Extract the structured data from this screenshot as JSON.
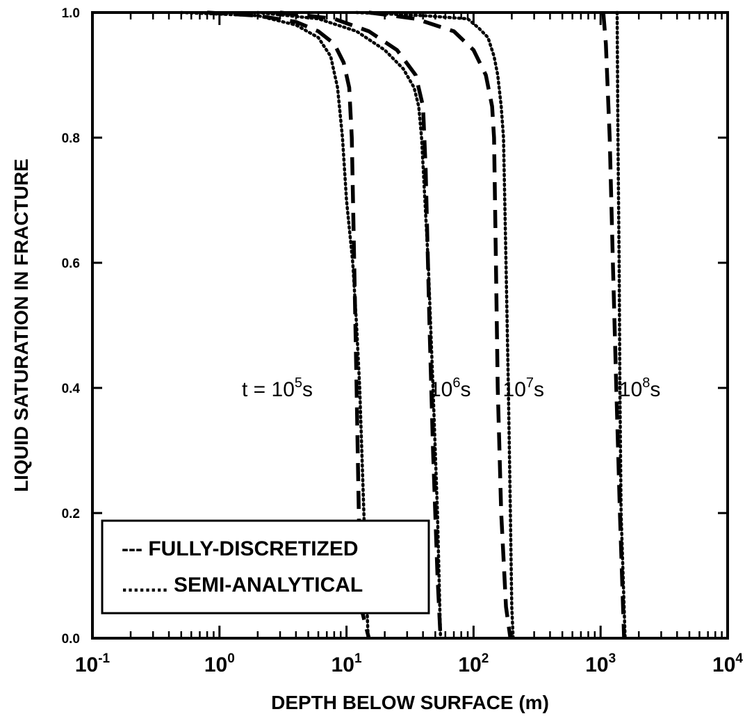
{
  "chart_data": {
    "type": "line",
    "title": "",
    "xlabel": "DEPTH BELOW SURFACE (m)",
    "ylabel": "LIQUID SATURATION IN FRACTURE",
    "x_scale": "log",
    "xlim": [
      0.1,
      10000
    ],
    "ylim": [
      0.0,
      1.0
    ],
    "x_tick_labels": [
      {
        "base": "10",
        "exp": "-1",
        "value": 0.1
      },
      {
        "base": "10",
        "exp": "0",
        "value": 1
      },
      {
        "base": "10",
        "exp": "1",
        "value": 10
      },
      {
        "base": "10",
        "exp": "2",
        "value": 100
      },
      {
        "base": "10",
        "exp": "3",
        "value": 1000
      },
      {
        "base": "10",
        "exp": "4",
        "value": 10000
      }
    ],
    "y_tick_labels": [
      "0.0",
      "0.2",
      "0.4",
      "0.6",
      "0.8",
      "1.0"
    ],
    "y_tick_values": [
      0.0,
      0.2,
      0.4,
      0.6,
      0.8,
      1.0
    ],
    "grid": false,
    "legend": {
      "placement": "bottom-left",
      "entries": [
        {
          "marker": "---",
          "label": "FULLY-DISCRETIZED",
          "style": "dashed"
        },
        {
          "marker": "........",
          "label": "SEMI-ANALYTICAL",
          "style": "dotted"
        }
      ]
    },
    "annotations": [
      {
        "prefix": "t = 10",
        "exp": "5",
        "suffix": "s",
        "x": 1.5,
        "y": 0.4
      },
      {
        "prefix": "10",
        "exp": "6",
        "suffix": "s",
        "x": 45,
        "y": 0.4
      },
      {
        "prefix": "10",
        "exp": "7",
        "suffix": "s",
        "x": 170,
        "y": 0.4
      },
      {
        "prefix": "10",
        "exp": "8",
        "suffix": "s",
        "x": 1400,
        "y": 0.4
      }
    ],
    "series": [
      {
        "time": "1e5 s",
        "method": "FULLY-DISCRETIZED",
        "style": "dashed",
        "points": [
          [
            0.8,
            1.0
          ],
          [
            2,
            0.995
          ],
          [
            4,
            0.985
          ],
          [
            6,
            0.97
          ],
          [
            8,
            0.95
          ],
          [
            9.5,
            0.92
          ],
          [
            10.5,
            0.88
          ],
          [
            11,
            0.8
          ],
          [
            11.5,
            0.6
          ],
          [
            12,
            0.4
          ],
          [
            12.5,
            0.2
          ],
          [
            13,
            0.05
          ],
          [
            15,
            0.0
          ]
        ]
      },
      {
        "time": "1e5 s",
        "method": "SEMI-ANALYTICAL",
        "style": "dotted",
        "points": [
          [
            0.5,
            1.0
          ],
          [
            2,
            0.995
          ],
          [
            4,
            0.98
          ],
          [
            6,
            0.96
          ],
          [
            7.5,
            0.93
          ],
          [
            8.5,
            0.88
          ],
          [
            9.3,
            0.8
          ],
          [
            10,
            0.7
          ],
          [
            11.2,
            0.6
          ],
          [
            12,
            0.5
          ],
          [
            12.7,
            0.4
          ],
          [
            13.2,
            0.3
          ],
          [
            13.7,
            0.2
          ],
          [
            14.2,
            0.1
          ],
          [
            14.8,
            0.0
          ]
        ]
      },
      {
        "time": "1e6 s",
        "method": "FULLY-DISCRETIZED",
        "style": "dashed",
        "points": [
          [
            3,
            1.0
          ],
          [
            8,
            0.99
          ],
          [
            15,
            0.97
          ],
          [
            25,
            0.94
          ],
          [
            35,
            0.9
          ],
          [
            40,
            0.85
          ],
          [
            42,
            0.75
          ],
          [
            45,
            0.5
          ],
          [
            48,
            0.3
          ],
          [
            52,
            0.1
          ],
          [
            55,
            0.0
          ]
        ]
      },
      {
        "time": "1e6 s",
        "method": "SEMI-ANALYTICAL",
        "style": "dotted",
        "points": [
          [
            2,
            1.0
          ],
          [
            6,
            0.99
          ],
          [
            12,
            0.97
          ],
          [
            20,
            0.94
          ],
          [
            28,
            0.91
          ],
          [
            34,
            0.88
          ],
          [
            37,
            0.85
          ],
          [
            39,
            0.8
          ],
          [
            44,
            0.6
          ],
          [
            48,
            0.4
          ],
          [
            52,
            0.2
          ],
          [
            55,
            0.0
          ]
        ]
      },
      {
        "time": "1e7 s",
        "method": "FULLY-DISCRETIZED",
        "style": "dashed",
        "points": [
          [
            15,
            1.0
          ],
          [
            35,
            0.99
          ],
          [
            70,
            0.97
          ],
          [
            100,
            0.94
          ],
          [
            125,
            0.9
          ],
          [
            140,
            0.85
          ],
          [
            145,
            0.8
          ],
          [
            150,
            0.6
          ],
          [
            155,
            0.4
          ],
          [
            165,
            0.2
          ],
          [
            180,
            0.05
          ],
          [
            195,
            0.0
          ]
        ]
      },
      {
        "time": "1e7 s",
        "method": "SEMI-ANALYTICAL",
        "style": "dotted",
        "points": [
          [
            12,
            1.0
          ],
          [
            40,
            0.995
          ],
          [
            90,
            0.99
          ],
          [
            110,
            0.975
          ],
          [
            130,
            0.96
          ],
          [
            145,
            0.93
          ],
          [
            155,
            0.9
          ],
          [
            165,
            0.85
          ],
          [
            172,
            0.8
          ],
          [
            180,
            0.6
          ],
          [
            188,
            0.4
          ],
          [
            195,
            0.2
          ],
          [
            200,
            0.05
          ],
          [
            205,
            0.0
          ]
        ]
      },
      {
        "time": "1e8 s",
        "method": "FULLY-DISCRETIZED",
        "style": "dashed",
        "points": [
          [
            1050,
            1.0
          ],
          [
            1100,
            0.95
          ],
          [
            1180,
            0.8
          ],
          [
            1250,
            0.6
          ],
          [
            1330,
            0.4
          ],
          [
            1420,
            0.2
          ],
          [
            1530,
            0.0
          ]
        ]
      },
      {
        "time": "1e8 s",
        "method": "SEMI-ANALYTICAL",
        "style": "dotted",
        "points": [
          [
            1350,
            1.0
          ],
          [
            1370,
            0.8
          ],
          [
            1400,
            0.6
          ],
          [
            1420,
            0.4
          ],
          [
            1450,
            0.2
          ],
          [
            1560,
            0.0
          ]
        ]
      }
    ]
  }
}
